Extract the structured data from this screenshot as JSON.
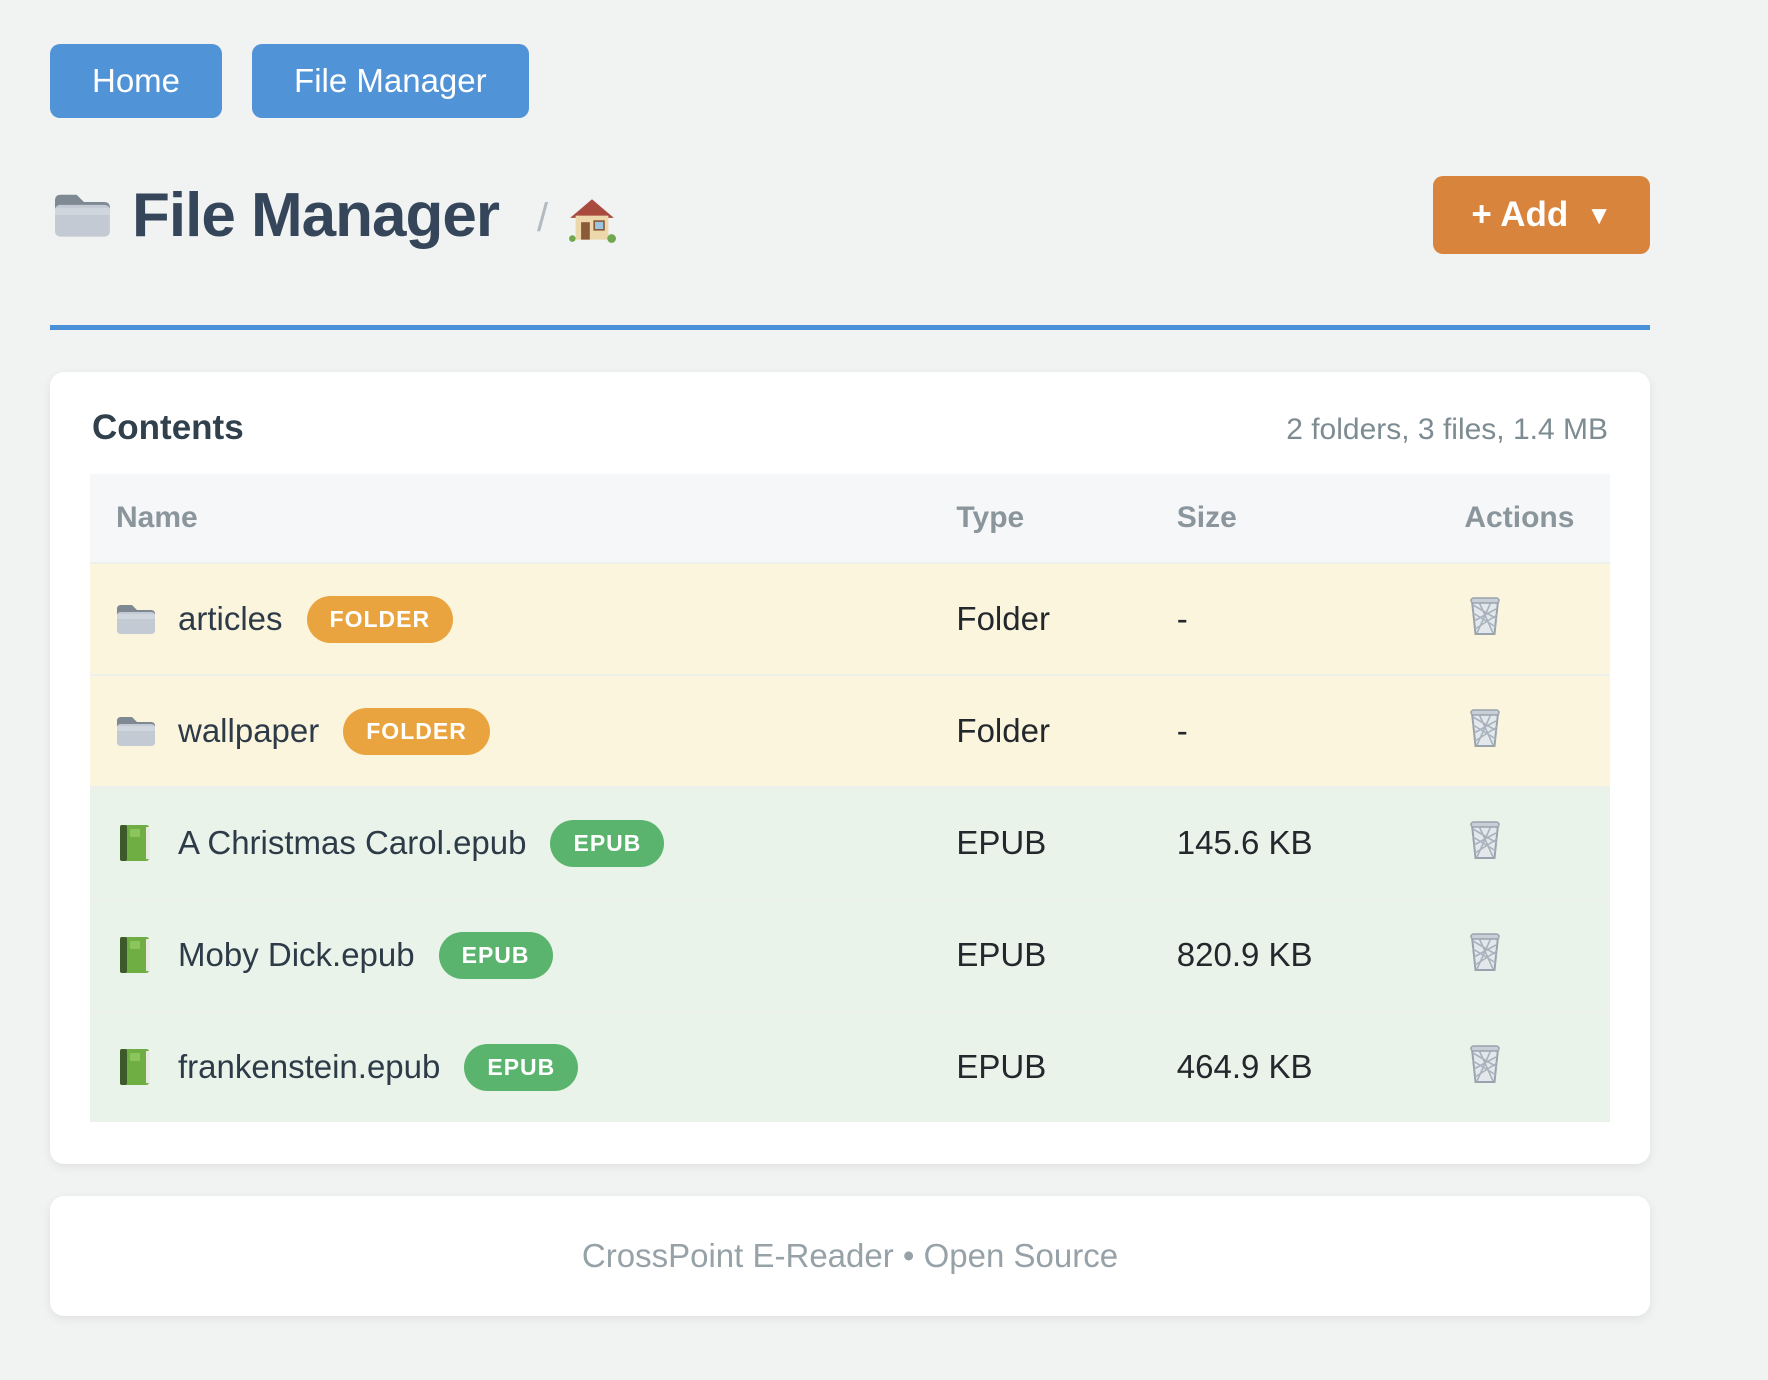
{
  "nav": {
    "buttons": [
      {
        "label": "Home"
      },
      {
        "label": "File Manager"
      }
    ]
  },
  "header": {
    "title_icon": "folder-icon",
    "title": "File Manager",
    "breadcrumb_separator": "/",
    "breadcrumb_home_icon": "house-icon",
    "add_button": {
      "label": "+ Add",
      "caret": "▼"
    }
  },
  "panel": {
    "title": "Contents",
    "summary": "2 folders, 3 files, 1.4 MB",
    "columns": [
      "Name",
      "Type",
      "Size",
      "Actions"
    ],
    "rows": [
      {
        "icon": "folder-icon",
        "name": "articles",
        "badge": "FOLDER",
        "kind": "folder",
        "type": "Folder",
        "size": "-",
        "action_icon": "wastebasket-icon"
      },
      {
        "icon": "folder-icon",
        "name": "wallpaper",
        "badge": "FOLDER",
        "kind": "folder",
        "type": "Folder",
        "size": "-",
        "action_icon": "wastebasket-icon"
      },
      {
        "icon": "green-book-icon",
        "name": "A Christmas Carol.epub",
        "badge": "EPUB",
        "kind": "epub",
        "type": "EPUB",
        "size": "145.6 KB",
        "action_icon": "wastebasket-icon"
      },
      {
        "icon": "green-book-icon",
        "name": "Moby Dick.epub",
        "badge": "EPUB",
        "kind": "epub",
        "type": "EPUB",
        "size": "820.9 KB",
        "action_icon": "wastebasket-icon"
      },
      {
        "icon": "green-book-icon",
        "name": "frankenstein.epub",
        "badge": "EPUB",
        "kind": "epub",
        "type": "EPUB",
        "size": "464.9 KB",
        "action_icon": "wastebasket-icon"
      }
    ]
  },
  "footer": {
    "text": "CrossPoint E-Reader • Open Source"
  },
  "colors": {
    "nav_button": "#5193d7",
    "title_rule": "#4a90d9",
    "add_button": "#d8843d",
    "badge_folder": "#e9a43f",
    "badge_epub": "#5bb46d",
    "row_folder_bg": "#fcf5dd",
    "row_epub_bg": "#e9f3e9",
    "table_header_bg": "#f5f7f8",
    "page_bg": "#f1f2f2"
  }
}
